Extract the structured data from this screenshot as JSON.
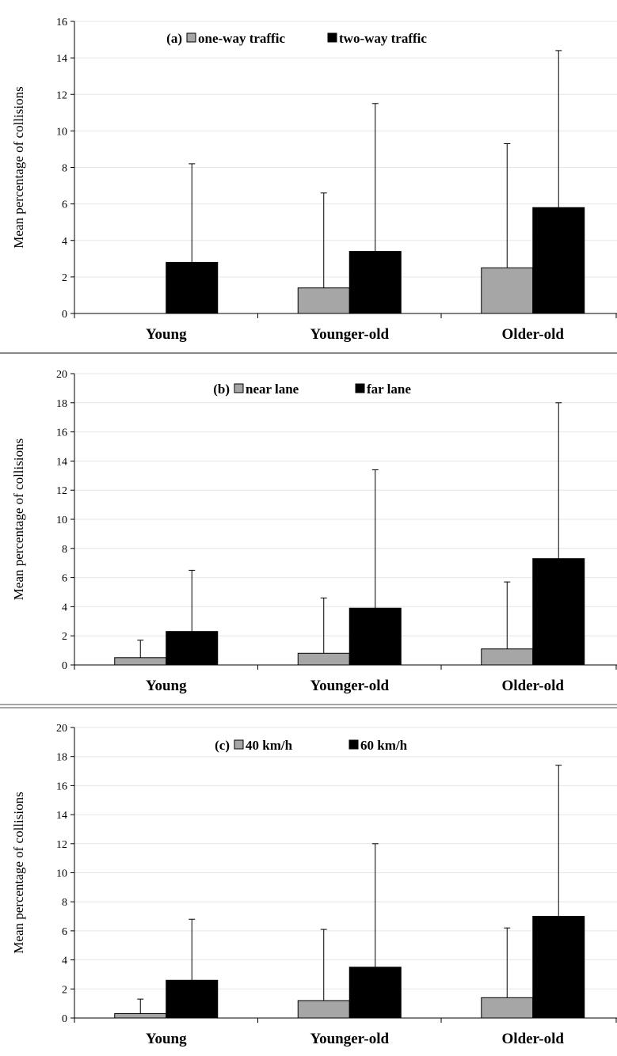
{
  "chart_data": [
    {
      "type": "bar",
      "panel_label": "(a)",
      "categories": [
        "Young",
        "Younger-old",
        "Older-old"
      ],
      "series": [
        {
          "name": "one-way traffic",
          "values": [
            0,
            1.4,
            2.5
          ],
          "error_upper": [
            0,
            6.6,
            9.3
          ],
          "color": "#a6a6a6"
        },
        {
          "name": "two-way traffic",
          "values": [
            2.8,
            3.4,
            5.8
          ],
          "error_upper": [
            8.2,
            11.5,
            14.4
          ],
          "color": "#000000"
        }
      ],
      "ylabel": "Mean percentage of collisions",
      "ylim": [
        0,
        16
      ],
      "yticks": [
        0,
        2,
        4,
        6,
        8,
        10,
        12,
        14,
        16
      ],
      "grid": true,
      "legend_position": "top"
    },
    {
      "type": "bar",
      "panel_label": "(b)",
      "categories": [
        "Young",
        "Younger-old",
        "Older-old"
      ],
      "series": [
        {
          "name": "near lane",
          "values": [
            0.5,
            0.8,
            1.1
          ],
          "error_upper": [
            1.7,
            4.6,
            5.7
          ],
          "color": "#a6a6a6"
        },
        {
          "name": "far lane",
          "values": [
            2.3,
            3.9,
            7.3
          ],
          "error_upper": [
            6.5,
            13.4,
            18.0
          ],
          "color": "#000000"
        }
      ],
      "ylabel": "Mean percentage of collisions",
      "ylim": [
        0,
        20
      ],
      "yticks": [
        0,
        2,
        4,
        6,
        8,
        10,
        12,
        14,
        16,
        18,
        20
      ],
      "grid": true,
      "legend_position": "top"
    },
    {
      "type": "bar",
      "panel_label": "(c)",
      "categories": [
        "Young",
        "Younger-old",
        "Older-old"
      ],
      "series": [
        {
          "name": "40 km/h",
          "values": [
            0.3,
            1.2,
            1.4
          ],
          "error_upper": [
            1.3,
            6.1,
            6.2
          ],
          "color": "#a6a6a6"
        },
        {
          "name": "60 km/h",
          "values": [
            2.6,
            3.5,
            7.0
          ],
          "error_upper": [
            6.8,
            12.0,
            17.4
          ],
          "color": "#000000"
        }
      ],
      "ylabel": "Mean percentage of collisions",
      "ylim": [
        0,
        20
      ],
      "yticks": [
        0,
        2,
        4,
        6,
        8,
        10,
        12,
        14,
        16,
        18,
        20
      ],
      "grid": true,
      "legend_position": "top"
    }
  ]
}
